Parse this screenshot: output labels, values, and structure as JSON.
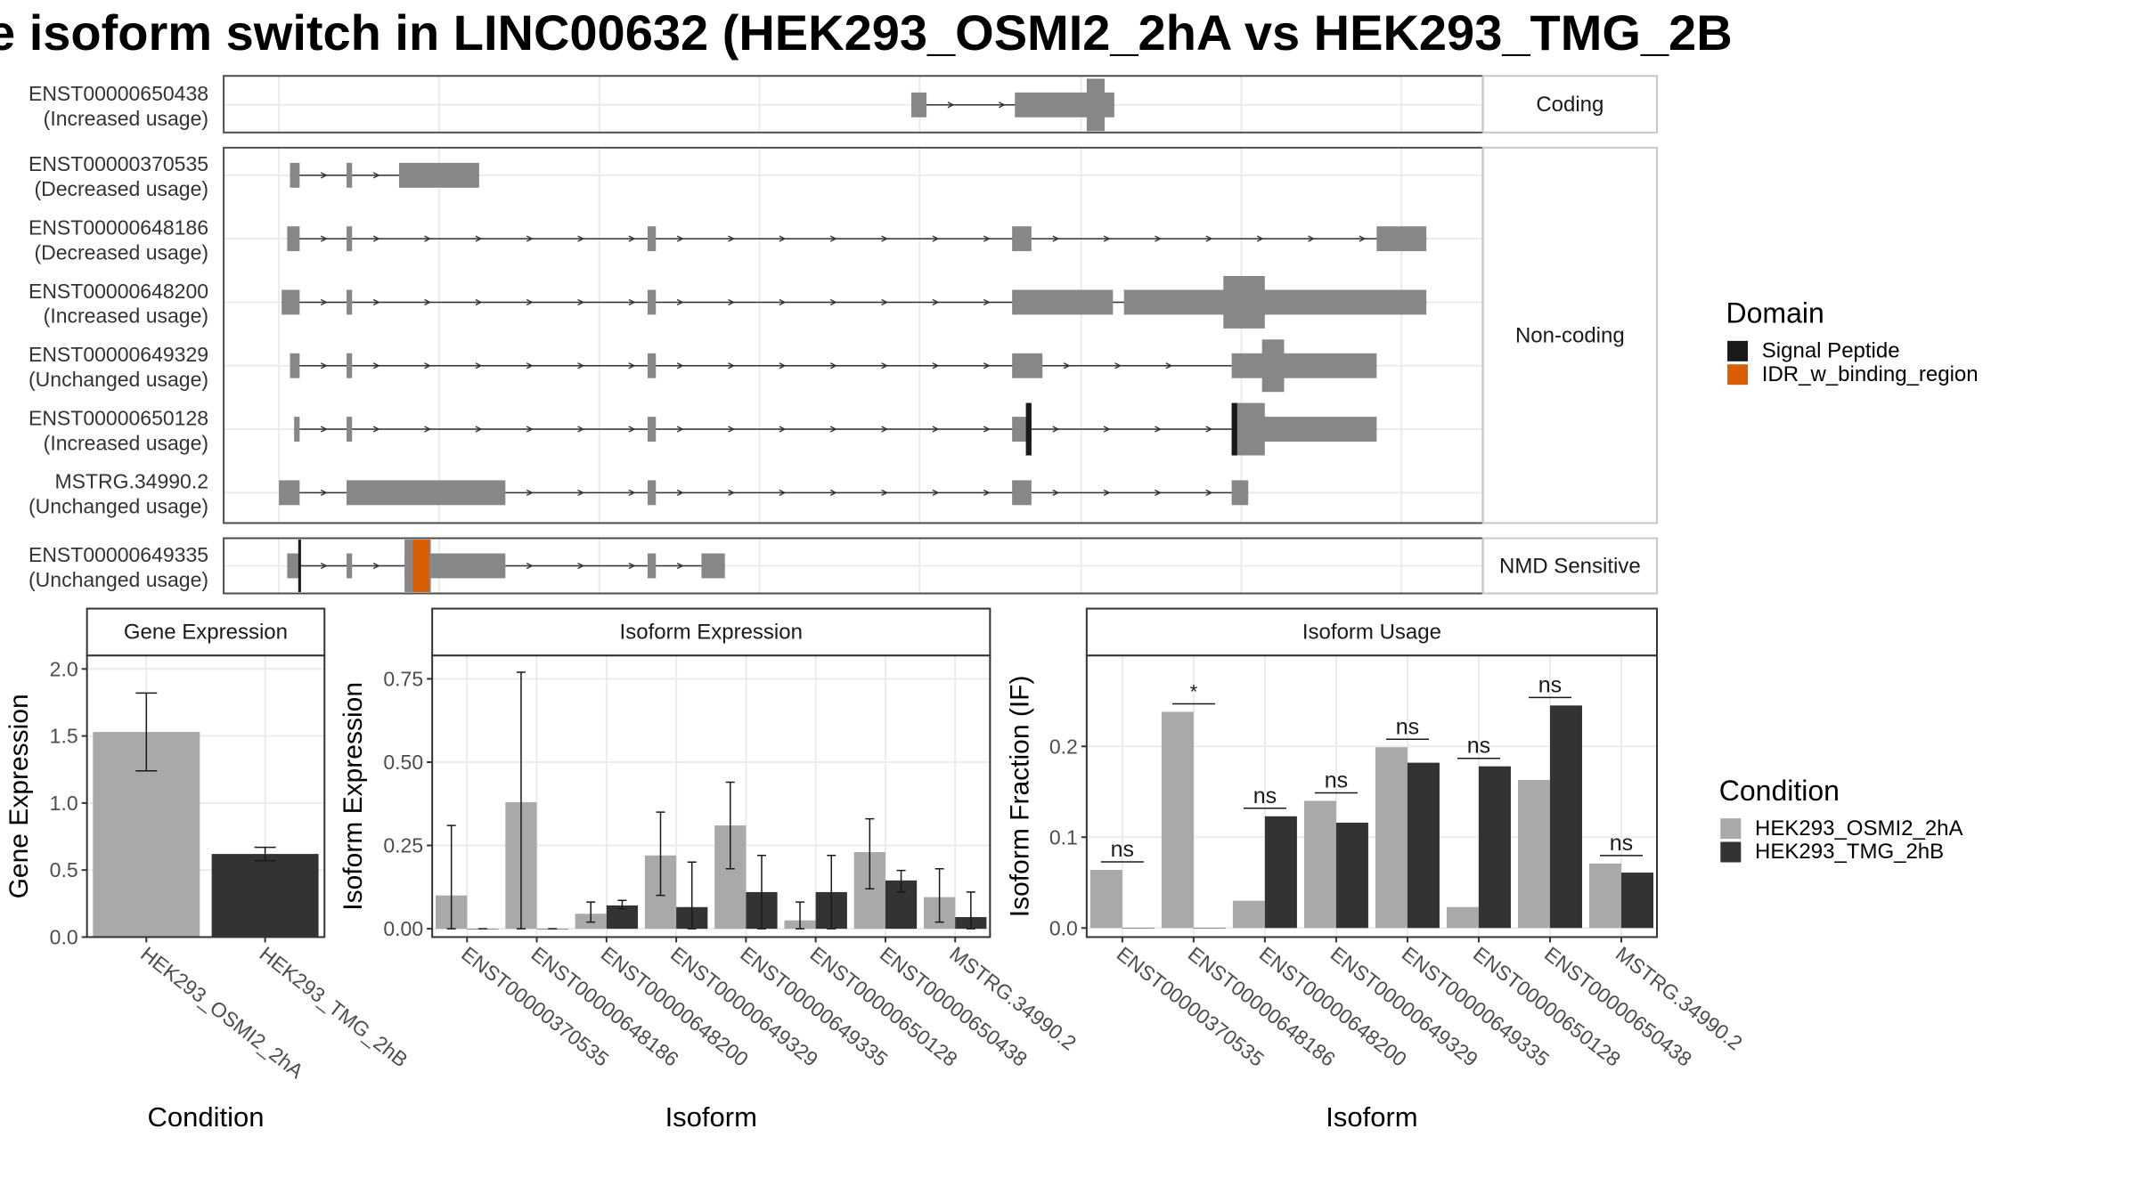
{
  "title": "e isoform switch in LINC00632 (HEK293_OSMI2_2hA vs HEK293_TMG_2B",
  "colors": {
    "exon": "#878787",
    "cond_a": "#a9a9a9",
    "cond_b": "#333333",
    "signal_peptide": "#1a1a1a",
    "idr": "#d95f02",
    "panel_border": "#4d4d4d",
    "grid": "#ebebeb",
    "strip_bg": "#ffffff"
  },
  "structure": {
    "facets": [
      "Coding",
      "Non-coding",
      "NMD Sensitive"
    ],
    "isoforms": [
      {
        "id": "ENST00000650438",
        "usage": "(Increased usage)",
        "facet": "Coding",
        "exons": [
          [
            660,
            671
          ],
          [
            735,
            807
          ]
        ],
        "cds": [
          [
            787,
            800
          ]
        ],
        "domains": []
      },
      {
        "id": "ENST00000370535",
        "usage": "(Decreased usage)",
        "facet": "Non-coding",
        "exons": [
          [
            210,
            217
          ],
          [
            251,
            255
          ],
          [
            289,
            347
          ]
        ],
        "cds": [],
        "domains": []
      },
      {
        "id": "ENST00000648186",
        "usage": "(Decreased usage)",
        "facet": "Non-coding",
        "exons": [
          [
            208,
            217
          ],
          [
            251,
            255
          ],
          [
            469,
            475
          ],
          [
            733,
            747
          ],
          [
            997,
            1033
          ]
        ],
        "cds": [],
        "domains": []
      },
      {
        "id": "ENST00000648200",
        "usage": "(Increased usage)",
        "facet": "Non-coding",
        "exons": [
          [
            204,
            217
          ],
          [
            251,
            255
          ],
          [
            469,
            475
          ],
          [
            733,
            806
          ],
          [
            814,
            1033
          ]
        ],
        "cds": [
          [
            886,
            916
          ]
        ],
        "domains": []
      },
      {
        "id": "ENST00000649329",
        "usage": "(Unchanged usage)",
        "facet": "Non-coding",
        "exons": [
          [
            210,
            217
          ],
          [
            251,
            255
          ],
          [
            469,
            475
          ],
          [
            733,
            755
          ],
          [
            892,
            997
          ]
        ],
        "cds": [
          [
            914,
            930
          ]
        ],
        "domains": []
      },
      {
        "id": "ENST00000650128",
        "usage": "(Increased usage)",
        "facet": "Non-coding",
        "exons": [
          [
            213,
            217
          ],
          [
            251,
            255
          ],
          [
            469,
            475
          ],
          [
            733,
            747
          ],
          [
            892,
            997
          ]
        ],
        "cds": [
          [
            743,
            747
          ],
          [
            892,
            916
          ]
        ],
        "domains": [
          {
            "name": "Signal Peptide",
            "range": [
              743,
              747
            ]
          },
          {
            "name": "Signal Peptide",
            "range": [
              892,
              896
            ]
          }
        ]
      },
      {
        "id": "MSTRG.34990.2",
        "usage": "(Unchanged usage)",
        "facet": "Non-coding",
        "exons": [
          [
            202,
            217
          ],
          [
            251,
            366
          ],
          [
            469,
            475
          ],
          [
            733,
            747
          ],
          [
            892,
            904
          ]
        ],
        "cds": [],
        "domains": []
      },
      {
        "id": "ENST00000649335",
        "usage": "(Unchanged usage)",
        "facet": "NMD Sensitive",
        "exons": [
          [
            208,
            217
          ],
          [
            251,
            255
          ],
          [
            293,
            366
          ],
          [
            469,
            475
          ],
          [
            508,
            525
          ]
        ],
        "cds": [
          [
            293,
            312
          ]
        ],
        "domains": [
          {
            "name": "Signal Peptide",
            "range": [
              216,
              218
            ]
          },
          {
            "name": "IDR_w_binding_region",
            "range": [
              299,
              311
            ]
          }
        ]
      }
    ],
    "legend": {
      "title": "Domain",
      "items": [
        {
          "label": "Signal Peptide",
          "color": "#1a1a1a"
        },
        {
          "label": "IDR_w_binding_region",
          "color": "#d95f02"
        }
      ]
    }
  },
  "chart_data": [
    {
      "type": "bar",
      "title": "Gene Expression",
      "xlabel": "Condition",
      "ylabel": "Gene Expression",
      "categories": [
        "HEK293_OSMI2_2hA",
        "HEK293_TMG_2hB"
      ],
      "values": [
        1.53,
        0.62
      ],
      "errors": [
        [
          1.24,
          1.82
        ],
        [
          0.57,
          0.67
        ]
      ],
      "ylim": [
        0,
        2.1
      ],
      "yticks": [
        "0.0",
        "0.5",
        "1.0",
        "1.5",
        "2.0"
      ],
      "grid": true
    },
    {
      "type": "bar",
      "title": "Isoform Expression",
      "xlabel": "Isoform",
      "ylabel": "Isoform Expression",
      "categories": [
        "ENST00000370535",
        "ENST00000648186",
        "ENST00000648200",
        "ENST00000649329",
        "ENST00000649335",
        "ENST00000650128",
        "ENST00000650438",
        "MSTRG.34990.2"
      ],
      "series": [
        {
          "name": "HEK293_OSMI2_2hA",
          "values": [
            0.1,
            0.38,
            0.045,
            0.22,
            0.31,
            0.025,
            0.23,
            0.095
          ],
          "errors": [
            [
              0.0,
              0.31
            ],
            [
              0.0,
              0.77
            ],
            [
              0.02,
              0.08
            ],
            [
              0.1,
              0.35
            ],
            [
              0.18,
              0.44
            ],
            [
              0.0,
              0.08
            ],
            [
              0.12,
              0.33
            ],
            [
              0.02,
              0.18
            ]
          ]
        },
        {
          "name": "HEK293_TMG_2hB",
          "values": [
            0.0,
            0.0,
            0.07,
            0.065,
            0.11,
            0.11,
            0.145,
            0.035
          ],
          "errors": [
            [
              0.0,
              0.0
            ],
            [
              0.0,
              0.0
            ],
            [
              0.06,
              0.085
            ],
            [
              0.0,
              0.2
            ],
            [
              0.0,
              0.22
            ],
            [
              0.0,
              0.22
            ],
            [
              0.11,
              0.175
            ],
            [
              0.0,
              0.11
            ]
          ]
        }
      ],
      "ylim": [
        -0.025,
        0.82
      ],
      "yticks": [
        "0.00",
        "0.25",
        "0.50",
        "0.75"
      ],
      "grid": true
    },
    {
      "type": "bar",
      "title": "Isoform Usage",
      "xlabel": "Isoform",
      "ylabel": "Isoform Fraction (IF)",
      "categories": [
        "ENST00000370535",
        "ENST00000648186",
        "ENST00000648200",
        "ENST00000649329",
        "ENST00000649335",
        "ENST00000650128",
        "ENST00000650438",
        "MSTRG.34990.2"
      ],
      "series": [
        {
          "name": "HEK293_OSMI2_2hA",
          "values": [
            0.064,
            0.238,
            0.03,
            0.14,
            0.199,
            0.023,
            0.163,
            0.071
          ]
        },
        {
          "name": "HEK293_TMG_2hB",
          "values": [
            0.0,
            0.0,
            0.123,
            0.116,
            0.182,
            0.178,
            0.245,
            0.061
          ]
        }
      ],
      "significance": [
        "ns",
        "*",
        "ns",
        "ns",
        "ns",
        "ns",
        "ns",
        "ns"
      ],
      "ylim": [
        -0.01,
        0.3
      ],
      "yticks": [
        "0.0",
        "0.1",
        "0.2"
      ],
      "grid": true
    }
  ],
  "condition_legend": {
    "title": "Condition",
    "items": [
      {
        "label": "HEK293_OSMI2_2hA",
        "color": "#a9a9a9"
      },
      {
        "label": "HEK293_TMG_2hB",
        "color": "#333333"
      }
    ]
  }
}
